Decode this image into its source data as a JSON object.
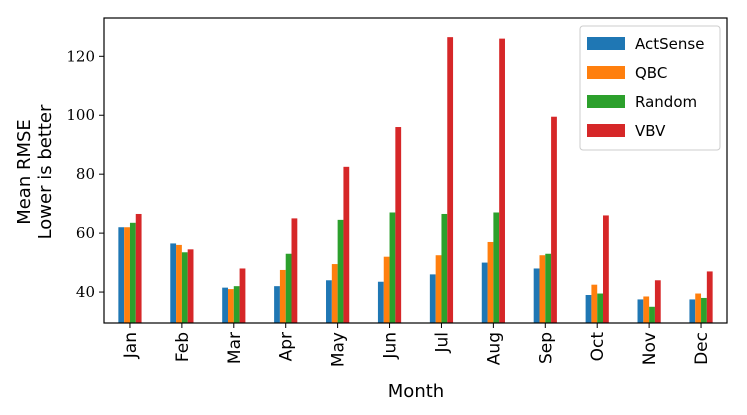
{
  "chart_data": {
    "type": "bar",
    "title": "",
    "xlabel": "Month",
    "ylabel_lines": [
      "Mean RMSE",
      "Lower is better"
    ],
    "ylim": [
      29.5,
      133
    ],
    "yticks": [
      "40",
      "60",
      "80",
      "100",
      "120"
    ],
    "ytick_values": [
      40,
      60,
      80,
      100,
      120
    ],
    "grid": false,
    "legend_position": "top-right",
    "categories": [
      "Jan",
      "Feb",
      "Mar",
      "Apr",
      "May",
      "Jun",
      "Jul",
      "Aug",
      "Sep",
      "Oct",
      "Nov",
      "Dec"
    ],
    "series": [
      {
        "name": "ActSense",
        "color": "#1f77b4",
        "values": [
          62.0,
          56.5,
          41.5,
          42.0,
          44.0,
          43.5,
          46.0,
          50.0,
          48.0,
          39.0,
          37.5,
          37.5
        ]
      },
      {
        "name": "QBC",
        "color": "#ff7f0e",
        "values": [
          62.0,
          56.0,
          41.0,
          47.5,
          49.5,
          52.0,
          52.5,
          57.0,
          52.5,
          42.5,
          38.5,
          39.5
        ]
      },
      {
        "name": "Random",
        "color": "#2ca02c",
        "values": [
          63.5,
          53.5,
          42.0,
          53.0,
          64.5,
          67.0,
          66.5,
          67.0,
          53.0,
          39.5,
          35.0,
          38.0
        ]
      },
      {
        "name": "VBV",
        "color": "#d62728",
        "values": [
          66.5,
          54.5,
          48.0,
          65.0,
          82.5,
          96.0,
          126.5,
          126.0,
          99.5,
          66.0,
          44.0,
          47.0
        ]
      }
    ]
  }
}
